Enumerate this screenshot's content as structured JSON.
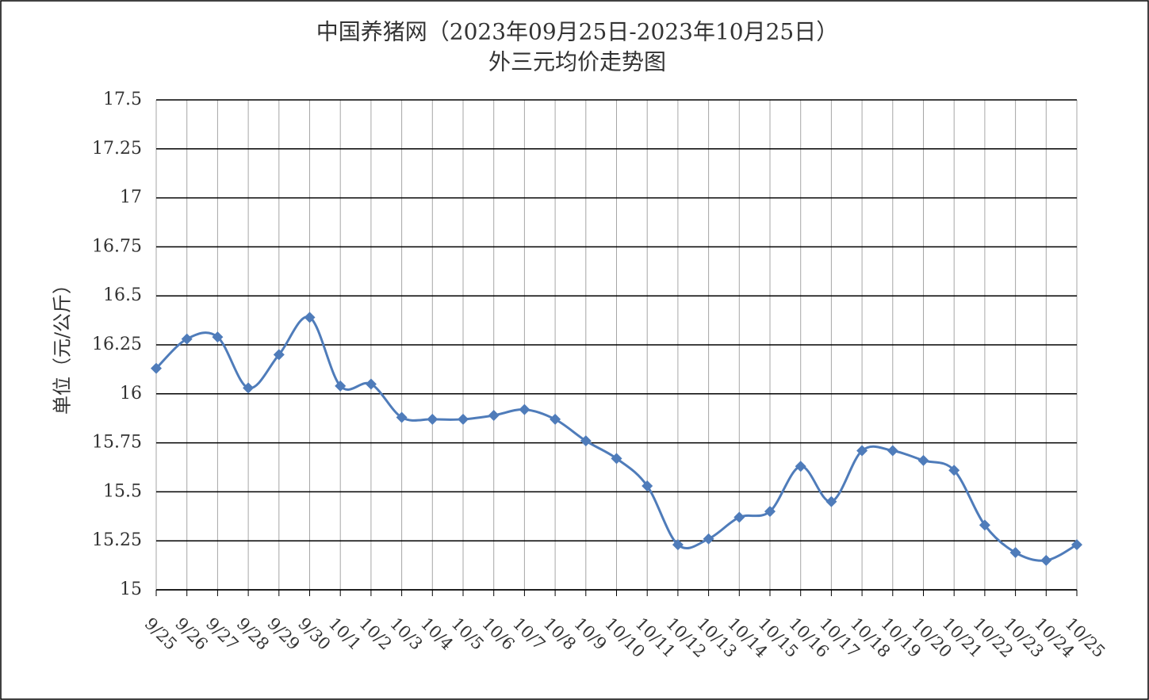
{
  "chart_data": {
    "type": "line",
    "title": "中国养猪网（2023年09月25日-2023年10月25日）",
    "subtitle": "外三元均价走势图",
    "y_label": "单位（元/公斤）",
    "categories": [
      "9/25",
      "9/26",
      "9/27",
      "9/28",
      "9/29",
      "9/30",
      "10/1",
      "10/2",
      "10/3",
      "10/4",
      "10/5",
      "10/6",
      "10/7",
      "10/8",
      "10/9",
      "10/10",
      "10/11",
      "10/12",
      "10/13",
      "10/14",
      "10/15",
      "10/16",
      "10/17",
      "10/18",
      "10/19",
      "10/20",
      "10/21",
      "10/22",
      "10/23",
      "10/24",
      "10/25"
    ],
    "values": [
      16.13,
      16.28,
      16.29,
      16.03,
      16.2,
      16.39,
      16.04,
      16.05,
      15.88,
      15.87,
      15.87,
      15.89,
      15.92,
      15.87,
      15.76,
      15.67,
      15.53,
      15.23,
      15.26,
      15.37,
      15.4,
      15.63,
      15.45,
      15.71,
      15.71,
      15.66,
      15.61,
      15.33,
      15.19,
      15.15,
      15.23
    ],
    "color": "#4f7cba",
    "smooth": true,
    "ylim": [
      15,
      17.5
    ],
    "yticks": [
      15,
      15.25,
      15.5,
      15.75,
      16,
      16.25,
      16.5,
      16.75,
      17,
      17.25,
      17.5
    ],
    "grid": true
  }
}
